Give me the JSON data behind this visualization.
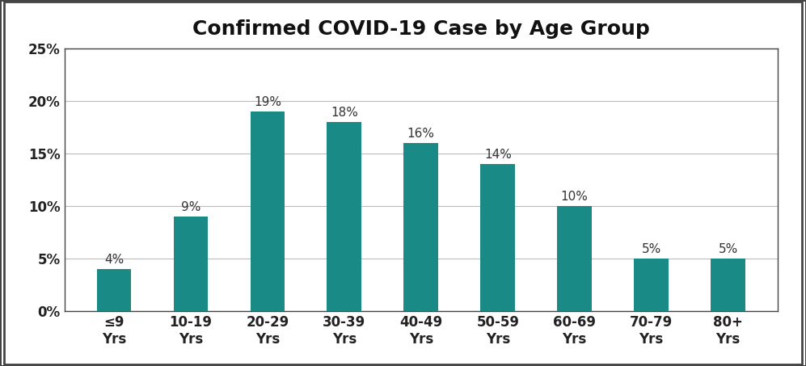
{
  "title": "Confirmed COVID-19 Case by Age Group",
  "categories": [
    "≤9\nYrs",
    "10-19\nYrs",
    "20-29\nYrs",
    "30-39\nYrs",
    "40-49\nYrs",
    "50-59\nYrs",
    "60-69\nYrs",
    "70-79\nYrs",
    "80+\nYrs"
  ],
  "values": [
    4,
    9,
    19,
    18,
    16,
    14,
    10,
    5,
    5
  ],
  "labels": [
    "4%",
    "9%",
    "19%",
    "18%",
    "16%",
    "14%",
    "10%",
    "5%",
    "5%"
  ],
  "bar_color": "#1a8a87",
  "background_color": "#ffffff",
  "border_color": "#444444",
  "ylim": [
    0,
    25
  ],
  "yticks": [
    0,
    5,
    10,
    15,
    20,
    25
  ],
  "ytick_labels": [
    "0%",
    "5%",
    "10%",
    "15%",
    "20%",
    "25%"
  ],
  "title_fontsize": 18,
  "tick_fontsize": 12,
  "label_fontsize": 11,
  "grid_color": "#bbbbbb",
  "bar_width": 0.45
}
